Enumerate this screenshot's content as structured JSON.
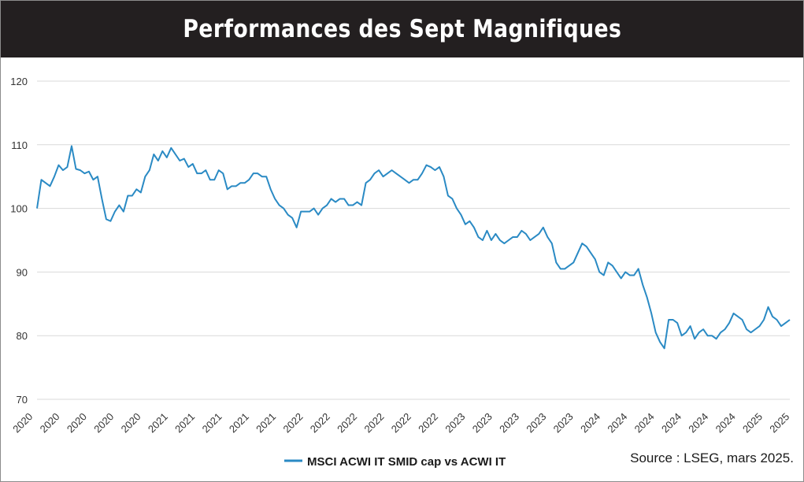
{
  "title": "Performances des Sept Magnifiques",
  "source_note": "Source : LSEG, mars 2025.",
  "colors": {
    "line": "#2a8ac4",
    "header_bg": "#231f20",
    "grid": "#d9d9d9"
  },
  "chart_data": {
    "type": "line",
    "title": "Performances des Sept Magnifiques",
    "xlabel": "",
    "ylabel": "",
    "ylim": [
      70,
      120
    ],
    "yticks": [
      70,
      80,
      90,
      100,
      110,
      120
    ],
    "xtick_labels": [
      "2020",
      "2020",
      "2020",
      "2020",
      "2020",
      "2021",
      "2021",
      "2021",
      "2021",
      "2021",
      "2022",
      "2022",
      "2022",
      "2022",
      "2022",
      "2022",
      "2023",
      "2023",
      "2023",
      "2023",
      "2023",
      "2024",
      "2024",
      "2024",
      "2024",
      "2024",
      "2024",
      "2025",
      "2025"
    ],
    "grid": true,
    "legend_position": "bottom",
    "series": [
      {
        "name": "MSCI ACWI IT SMID cap vs ACWI IT",
        "color": "#2a8ac4",
        "values": [
          100.0,
          104.5,
          104.0,
          103.5,
          105.0,
          106.8,
          106.0,
          106.5,
          109.8,
          106.2,
          106.0,
          105.5,
          105.8,
          104.5,
          105.0,
          101.5,
          98.3,
          98.0,
          99.5,
          100.5,
          99.5,
          102.0,
          102.0,
          103.0,
          102.5,
          105.0,
          106.0,
          108.5,
          107.5,
          109.0,
          108.0,
          109.5,
          108.5,
          107.5,
          107.8,
          106.5,
          107.0,
          105.5,
          105.5,
          106.0,
          104.5,
          104.5,
          106.0,
          105.5,
          103.0,
          103.5,
          103.5,
          104.0,
          104.0,
          104.5,
          105.5,
          105.5,
          105.0,
          105.0,
          103.0,
          101.5,
          100.5,
          100.0,
          99.0,
          98.5,
          97.0,
          99.5,
          99.5,
          99.5,
          100.0,
          99.0,
          100.0,
          100.5,
          101.5,
          101.0,
          101.5,
          101.5,
          100.5,
          100.5,
          101.0,
          100.5,
          104.0,
          104.5,
          105.5,
          106.0,
          105.0,
          105.5,
          106.0,
          105.5,
          105.0,
          104.5,
          104.0,
          104.5,
          104.5,
          105.5,
          106.8,
          106.5,
          106.0,
          106.5,
          105.0,
          102.0,
          101.5,
          100.0,
          99.0,
          97.5,
          98.0,
          97.0,
          95.5,
          95.0,
          96.5,
          95.0,
          96.0,
          95.0,
          94.5,
          95.0,
          95.5,
          95.5,
          96.5,
          96.0,
          95.0,
          95.5,
          96.0,
          97.0,
          95.5,
          94.5,
          91.5,
          90.5,
          90.5,
          91.0,
          91.5,
          93.0,
          94.5,
          94.0,
          93.0,
          92.0,
          90.0,
          89.5,
          91.5,
          91.0,
          90.0,
          89.0,
          90.0,
          89.5,
          89.5,
          90.5,
          88.0,
          86.0,
          83.5,
          80.5,
          79.0,
          78.0,
          82.5,
          82.5,
          82.0,
          80.0,
          80.5,
          81.5,
          79.5,
          80.5,
          81.0,
          80.0,
          80.0,
          79.5,
          80.5,
          81.0,
          82.0,
          83.5,
          83.0,
          82.5,
          81.0,
          80.5,
          81.0,
          81.5,
          82.5,
          84.5,
          83.0,
          82.5,
          81.5,
          82.0,
          82.5
        ]
      }
    ]
  }
}
